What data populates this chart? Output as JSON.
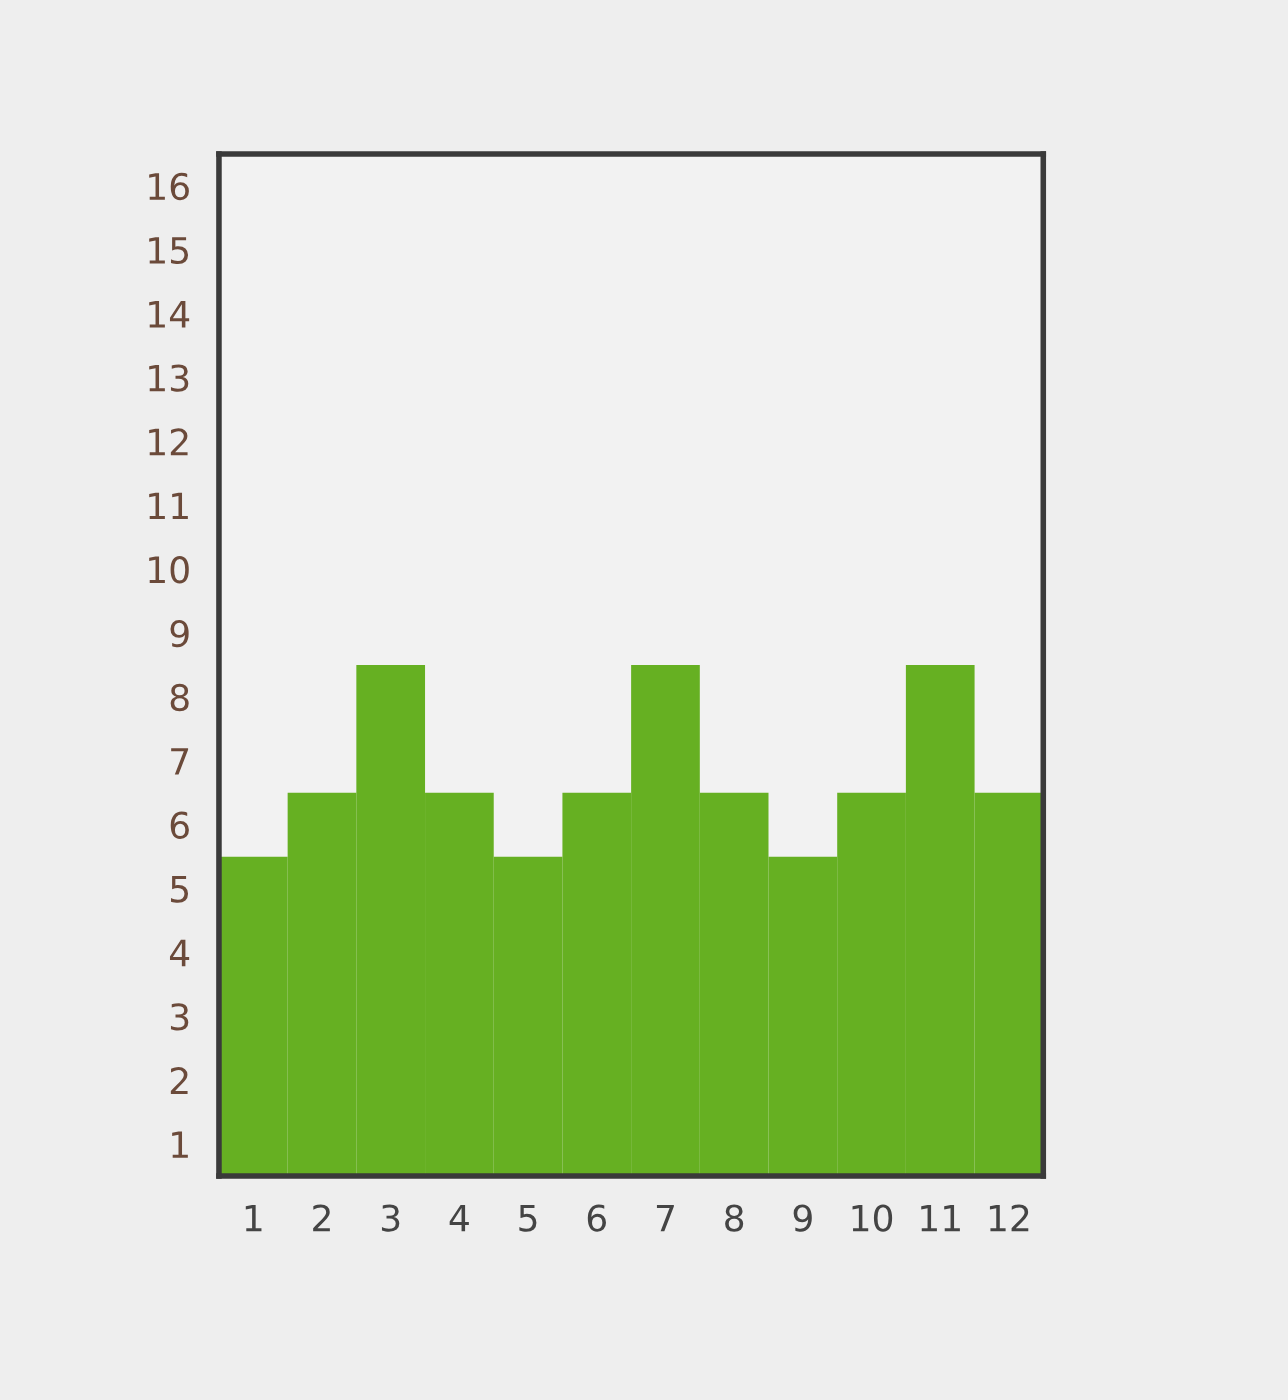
{
  "chart_data": {
    "type": "bar",
    "categories": [
      "1",
      "2",
      "3",
      "4",
      "5",
      "6",
      "7",
      "8",
      "9",
      "10",
      "11",
      "12"
    ],
    "values": [
      5,
      6,
      8,
      6,
      5,
      6,
      8,
      6,
      5,
      6,
      8,
      6
    ],
    "color": "#66b022",
    "ylim": [
      0,
      16
    ],
    "yticks": [
      {
        "value": 0.5,
        "label": "1"
      },
      {
        "value": 1.5,
        "label": "2"
      },
      {
        "value": 2.5,
        "label": "3"
      },
      {
        "value": 3.5,
        "label": "4"
      },
      {
        "value": 4.5,
        "label": "5"
      },
      {
        "value": 5.5,
        "label": "6"
      },
      {
        "value": 6.5,
        "label": "7"
      },
      {
        "value": 7.5,
        "label": "8"
      },
      {
        "value": 8.5,
        "label": "9"
      },
      {
        "value": 9.5,
        "label": "10"
      },
      {
        "value": 10.5,
        "label": "11"
      },
      {
        "value": 11.5,
        "label": "12"
      },
      {
        "value": 12.5,
        "label": "13"
      },
      {
        "value": 13.5,
        "label": "14"
      },
      {
        "value": 14.5,
        "label": "15"
      },
      {
        "value": 15.5,
        "label": "16"
      }
    ]
  }
}
